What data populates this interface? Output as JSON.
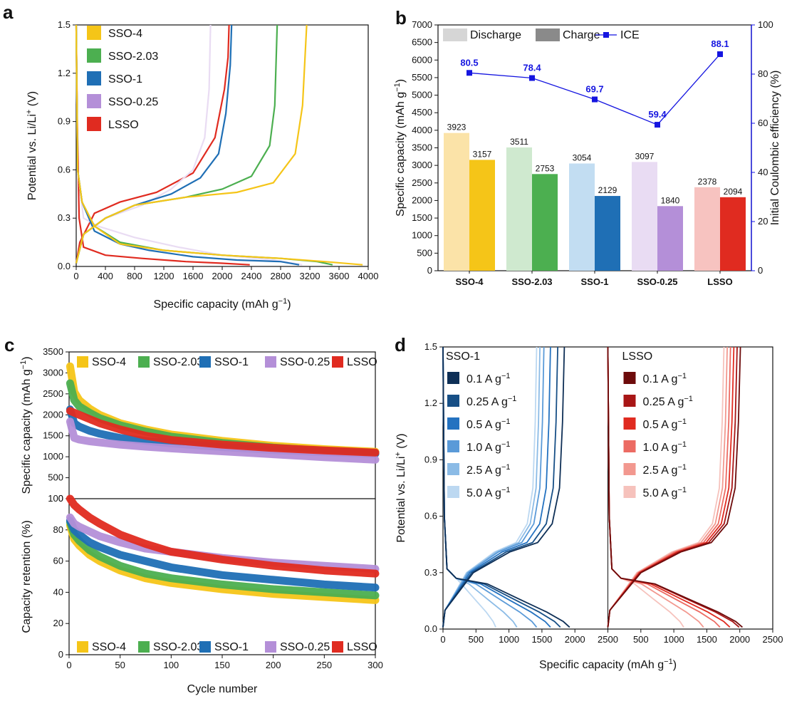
{
  "panels": {
    "a": {
      "letter": "a",
      "xlabel": "Specific capacity (mAh g",
      "xlabel_sup": "−1",
      "xlabel_end": ")",
      "ylabel": "Potential vs. Li/Li",
      "ylabel_sup": "+",
      "ylabel_end": " (V)"
    },
    "b": {
      "letter": "b",
      "ylabel": "Specific capacity (mAh g",
      "ylabel_sup": "−1",
      "ylabel_end": ")",
      "y2label": "Initial Coulombic efficiency (%)"
    },
    "c": {
      "letter": "c",
      "xlabel": "Cycle number",
      "ylabel_top": "Specific capacity (mAh g",
      "ylabel_top_sup": "−1",
      "ylabel_top_end": ")",
      "ylabel_bottom": "Capacity retention (%)"
    },
    "d": {
      "letter": "d",
      "xlabel": "Specific capacity (mAh g",
      "xlabel_sup": "−1",
      "xlabel_end": ")",
      "ylabel": "Potential vs. Li/Li",
      "ylabel_sup": "+",
      "ylabel_end": " (V)",
      "left_title": "SSO-1",
      "right_title": "LSSO"
    }
  },
  "colors": {
    "SSO-4": "#f5c518",
    "SSO-2.03": "#4caf50",
    "SSO-1": "#1f6fb5",
    "SSO-0.25": "#b48fd8",
    "LSSO": "#e02b20",
    "SSO-4-light": "#fbe3a8",
    "SSO-2.03-light": "#cfe9cf",
    "SSO-1-light": "#c2ddf2",
    "SSO-0.25-light": "#e9dcf3",
    "LSSO-light": "#f7c3c0",
    "ice": "#1515e0"
  },
  "chart_data": [
    {
      "panel": "a",
      "type": "line",
      "xlim": [
        0,
        4000
      ],
      "ylim": [
        0,
        1.5
      ],
      "xticks": [
        "0",
        "400",
        "800",
        "1200",
        "1600",
        "2000",
        "2400",
        "2800",
        "3200",
        "3600",
        "4000"
      ],
      "yticks": [
        "0.0",
        "0.3",
        "0.6",
        "0.9",
        "1.2",
        "1.5"
      ],
      "legend": [
        "SSO-4",
        "SSO-2.03",
        "SSO-1",
        "SSO-0.25",
        "LSSO"
      ],
      "series": [
        {
          "name": "SSO-4",
          "discharge": [
            [
              0,
              1.5
            ],
            [
              20,
              0.6
            ],
            [
              80,
              0.4
            ],
            [
              250,
              0.25
            ],
            [
              600,
              0.14
            ],
            [
              1200,
              0.1
            ],
            [
              2000,
              0.07
            ],
            [
              2800,
              0.05
            ],
            [
              3400,
              0.03
            ],
            [
              3923,
              0.01
            ]
          ],
          "charge": [
            [
              0,
              0.02
            ],
            [
              100,
              0.2
            ],
            [
              400,
              0.3
            ],
            [
              800,
              0.38
            ],
            [
              1500,
              0.43
            ],
            [
              2200,
              0.46
            ],
            [
              2700,
              0.52
            ],
            [
              3000,
              0.7
            ],
            [
              3100,
              1.0
            ],
            [
              3157,
              1.5
            ]
          ]
        },
        {
          "name": "SSO-2.03",
          "discharge": [
            [
              0,
              1.5
            ],
            [
              20,
              0.6
            ],
            [
              80,
              0.4
            ],
            [
              250,
              0.25
            ],
            [
              600,
              0.15
            ],
            [
              1200,
              0.1
            ],
            [
              2000,
              0.07
            ],
            [
              2800,
              0.05
            ],
            [
              3300,
              0.03
            ],
            [
              3511,
              0.01
            ]
          ],
          "charge": [
            [
              0,
              0.02
            ],
            [
              100,
              0.2
            ],
            [
              400,
              0.3
            ],
            [
              800,
              0.38
            ],
            [
              1500,
              0.43
            ],
            [
              2000,
              0.48
            ],
            [
              2400,
              0.56
            ],
            [
              2650,
              0.75
            ],
            [
              2720,
              1.0
            ],
            [
              2753,
              1.5
            ]
          ]
        },
        {
          "name": "SSO-1",
          "discharge": [
            [
              0,
              1.5
            ],
            [
              20,
              0.6
            ],
            [
              80,
              0.4
            ],
            [
              250,
              0.22
            ],
            [
              600,
              0.14
            ],
            [
              1000,
              0.1
            ],
            [
              1600,
              0.06
            ],
            [
              2200,
              0.04
            ],
            [
              2800,
              0.03
            ],
            [
              3054,
              0.01
            ]
          ],
          "charge": [
            [
              0,
              0.02
            ],
            [
              100,
              0.2
            ],
            [
              400,
              0.3
            ],
            [
              800,
              0.38
            ],
            [
              1300,
              0.45
            ],
            [
              1700,
              0.55
            ],
            [
              1950,
              0.7
            ],
            [
              2050,
              0.95
            ],
            [
              2110,
              1.25
            ],
            [
              2129,
              1.5
            ]
          ]
        },
        {
          "name": "SSO-0.25",
          "discharge": [
            [
              0,
              1.5
            ],
            [
              20,
              0.6
            ],
            [
              100,
              0.3
            ],
            [
              300,
              0.25
            ],
            [
              800,
              0.18
            ],
            [
              1400,
              0.12
            ],
            [
              2000,
              0.07
            ],
            [
              2700,
              0.04
            ],
            [
              3097,
              0.01
            ]
          ],
          "charge": [
            [
              0,
              0.02
            ],
            [
              100,
              0.2
            ],
            [
              400,
              0.3
            ],
            [
              900,
              0.38
            ],
            [
              1300,
              0.48
            ],
            [
              1600,
              0.6
            ],
            [
              1760,
              0.8
            ],
            [
              1820,
              1.1
            ],
            [
              1840,
              1.5
            ]
          ]
        },
        {
          "name": "LSSO",
          "discharge": [
            [
              0,
              1.5
            ],
            [
              15,
              0.9
            ],
            [
              40,
              0.3
            ],
            [
              100,
              0.12
            ],
            [
              400,
              0.07
            ],
            [
              900,
              0.05
            ],
            [
              1500,
              0.03
            ],
            [
              2000,
              0.02
            ],
            [
              2378,
              0.01
            ]
          ],
          "charge": [
            [
              0,
              0.02
            ],
            [
              50,
              0.15
            ],
            [
              250,
              0.33
            ],
            [
              600,
              0.4
            ],
            [
              1100,
              0.46
            ],
            [
              1600,
              0.58
            ],
            [
              1900,
              0.8
            ],
            [
              2030,
              1.1
            ],
            [
              2080,
              1.3
            ],
            [
              2094,
              1.5
            ]
          ]
        }
      ]
    },
    {
      "panel": "b",
      "type": "bar",
      "categories": [
        "SSO-4",
        "SSO-2.03",
        "SSO-1",
        "SSO-0.25",
        "LSSO"
      ],
      "ylim": [
        0,
        7000
      ],
      "y2lim": [
        0,
        100
      ],
      "yticks": [
        "0",
        "500",
        "1000",
        "1500",
        "2000",
        "2500",
        "3000",
        "3500",
        "4000",
        "4500",
        "5000",
        "5500",
        "6000",
        "6500",
        "7000"
      ],
      "y2ticks": [
        "0",
        "20",
        "40",
        "60",
        "80",
        "100"
      ],
      "legend": [
        "Discharge",
        "Charge",
        "ICE"
      ],
      "series": [
        {
          "name": "Discharge",
          "values": [
            3923,
            3511,
            3054,
            3097,
            2378
          ]
        },
        {
          "name": "Charge",
          "values": [
            3157,
            2753,
            2129,
            1840,
            2094
          ]
        },
        {
          "name": "ICE",
          "values": [
            80.5,
            78.4,
            69.7,
            59.4,
            88.1
          ]
        }
      ]
    },
    {
      "panel": "c",
      "type": "scatter",
      "xlabel": "Cycle number",
      "xlim": [
        0,
        300
      ],
      "xticks": [
        "0",
        "50",
        "100",
        "150",
        "200",
        "250",
        "300"
      ],
      "top": {
        "ylim": [
          0,
          3500
        ],
        "yticks": [
          "0",
          "500",
          "1000",
          "1500",
          "2000",
          "2500",
          "3000",
          "3500"
        ]
      },
      "bottom": {
        "ylim": [
          0,
          100
        ],
        "yticks": [
          "0",
          "20",
          "40",
          "60",
          "80",
          "100"
        ]
      },
      "legend": [
        "SSO-4",
        "SSO-2.03",
        "SSO-1",
        "SSO-0.25",
        "LSSO"
      ],
      "capacity": [
        {
          "name": "SSO-4",
          "x": [
            1,
            5,
            10,
            20,
            30,
            50,
            75,
            100,
            150,
            200,
            250,
            300
          ],
          "y": [
            3157,
            2550,
            2350,
            2150,
            2000,
            1800,
            1650,
            1530,
            1380,
            1260,
            1180,
            1120
          ]
        },
        {
          "name": "SSO-2.03",
          "x": [
            1,
            5,
            10,
            20,
            30,
            50,
            75,
            100,
            150,
            200,
            250,
            300
          ],
          "y": [
            2753,
            2350,
            2200,
            2050,
            1920,
            1750,
            1600,
            1480,
            1330,
            1220,
            1140,
            1090
          ]
        },
        {
          "name": "SSO-1",
          "x": [
            1,
            5,
            10,
            20,
            30,
            50,
            75,
            100,
            150,
            200,
            250,
            300
          ],
          "y": [
            2129,
            1800,
            1720,
            1620,
            1550,
            1450,
            1380,
            1320,
            1230,
            1160,
            1110,
            1070
          ]
        },
        {
          "name": "SSO-0.25",
          "x": [
            1,
            5,
            10,
            20,
            30,
            50,
            75,
            100,
            150,
            200,
            250,
            300
          ],
          "y": [
            1840,
            1450,
            1410,
            1370,
            1340,
            1290,
            1240,
            1200,
            1130,
            1060,
            990,
            930
          ]
        },
        {
          "name": "LSSO",
          "x": [
            1,
            5,
            10,
            20,
            30,
            50,
            75,
            100,
            150,
            200,
            250,
            300
          ],
          "y": [
            2094,
            2050,
            2000,
            1900,
            1800,
            1650,
            1500,
            1400,
            1290,
            1210,
            1150,
            1100
          ]
        }
      ],
      "retention": [
        {
          "name": "SSO-4",
          "x": [
            1,
            5,
            10,
            20,
            30,
            50,
            75,
            100,
            150,
            200,
            250,
            300
          ],
          "y": [
            83,
            74,
            70,
            64,
            60,
            54,
            49,
            46,
            42,
            39,
            37,
            35
          ]
        },
        {
          "name": "SSO-2.03",
          "x": [
            1,
            5,
            10,
            20,
            30,
            50,
            75,
            100,
            150,
            200,
            250,
            300
          ],
          "y": [
            85,
            77,
            73,
            67,
            63,
            57,
            52,
            49,
            45,
            42,
            40,
            38
          ]
        },
        {
          "name": "SSO-1",
          "x": [
            1,
            5,
            10,
            20,
            30,
            50,
            75,
            100,
            150,
            200,
            250,
            300
          ],
          "y": [
            86,
            80,
            77,
            72,
            69,
            64,
            60,
            56,
            51,
            48,
            45,
            43
          ]
        },
        {
          "name": "SSO-0.25",
          "x": [
            1,
            5,
            10,
            20,
            30,
            50,
            75,
            100,
            150,
            200,
            250,
            300
          ],
          "y": [
            88,
            84,
            82,
            79,
            76,
            72,
            68,
            66,
            62,
            59,
            57,
            55
          ]
        },
        {
          "name": "LSSO",
          "x": [
            1,
            5,
            10,
            20,
            30,
            50,
            75,
            100,
            150,
            200,
            250,
            300
          ],
          "y": [
            100,
            96,
            93,
            88,
            84,
            77,
            71,
            66,
            61,
            57,
            54,
            52
          ]
        }
      ]
    },
    {
      "panel": "d",
      "type": "line",
      "xlim": [
        0,
        2500
      ],
      "ylim": [
        0,
        1.5
      ],
      "xticks": [
        "0",
        "500",
        "1000",
        "1500",
        "2000",
        "2500",
        "500",
        "1000",
        "1500",
        "2000",
        "2500"
      ],
      "yticks": [
        "0.0",
        "0.3",
        "0.6",
        "0.9",
        "1.2",
        "1.5"
      ],
      "rates": [
        "0.1 A g",
        "0.25 A g",
        "0.5 A g",
        "1.0 A g",
        "2.5 A g",
        "5.0 A g"
      ],
      "rate_sup": "−1",
      "left": [
        {
          "rate": "0.1",
          "discharge_end": 1920,
          "charge_end": 1840
        },
        {
          "rate": "0.25",
          "discharge_end": 1780,
          "charge_end": 1740
        },
        {
          "rate": "0.5",
          "discharge_end": 1630,
          "charge_end": 1630
        },
        {
          "rate": "1.0",
          "discharge_end": 1420,
          "charge_end": 1530
        },
        {
          "rate": "2.5",
          "discharge_end": 1120,
          "charge_end": 1470
        },
        {
          "rate": "5.0",
          "discharge_end": 800,
          "charge_end": 1420
        }
      ],
      "right": [
        {
          "rate": "0.1",
          "discharge_end": 2040,
          "charge_end": 2010
        },
        {
          "rate": "0.25",
          "discharge_end": 1990,
          "charge_end": 1960
        },
        {
          "rate": "0.5",
          "discharge_end": 1850,
          "charge_end": 1910
        },
        {
          "rate": "1.0",
          "discharge_end": 1700,
          "charge_end": 1860
        },
        {
          "rate": "2.5",
          "discharge_end": 1450,
          "charge_end": 1810
        },
        {
          "rate": "5.0",
          "discharge_end": 1150,
          "charge_end": 1760
        }
      ],
      "blue_shades": [
        "#0e2f56",
        "#174f86",
        "#2472c0",
        "#5a9ad8",
        "#8bbbe6",
        "#bcd8f1"
      ],
      "red_shades": [
        "#6d0b0b",
        "#a81616",
        "#e02b20",
        "#ec6b63",
        "#f2988f",
        "#f6c2bc"
      ]
    }
  ]
}
